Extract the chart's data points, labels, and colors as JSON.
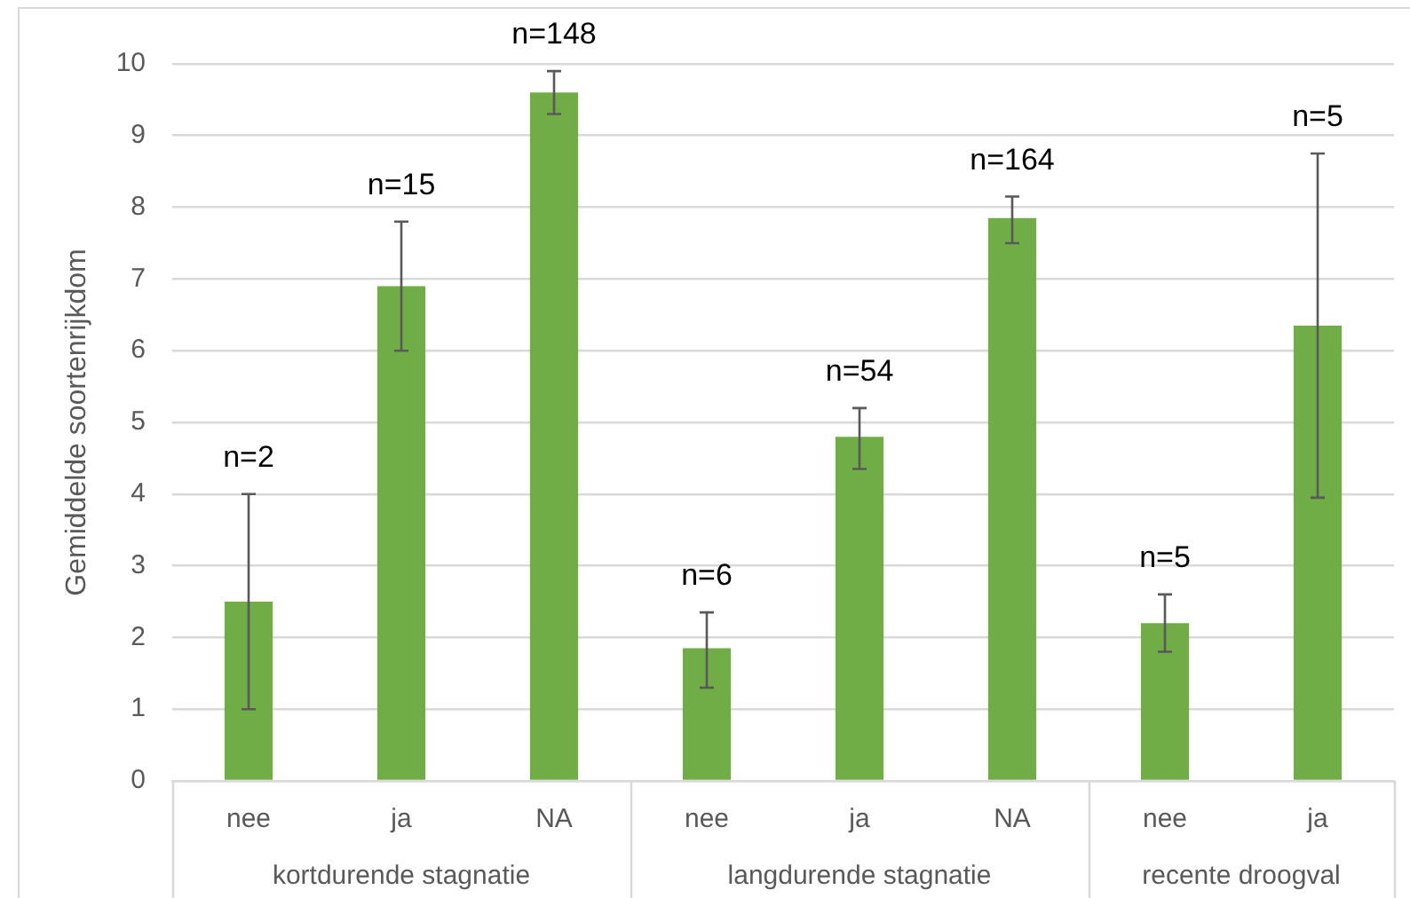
{
  "chart_data": {
    "type": "bar",
    "ylabel": "Gemiddelde soortenrijkdom",
    "categories": [
      "nee",
      "ja",
      "NA",
      "nee",
      "ja",
      "NA",
      "nee",
      "ja"
    ],
    "values": [
      2.5,
      6.9,
      9.6,
      1.85,
      4.8,
      7.85,
      2.2,
      6.35
    ],
    "color": "#70ad47",
    "errors": [
      [
        1,
        4
      ],
      [
        6,
        7.8
      ],
      [
        9.3,
        9.9
      ],
      [
        1.3,
        2.35
      ],
      [
        4.35,
        5.2
      ],
      [
        7.5,
        8.15
      ],
      [
        1.8,
        2.6
      ],
      [
        3.95,
        8.75
      ]
    ],
    "ylim": [
      0,
      10
    ],
    "yticks": [
      0,
      1,
      2,
      3,
      4,
      5,
      6,
      7,
      8,
      9,
      10
    ],
    "grid": "y",
    "annotations": [
      "n=2",
      "n=15",
      "n=148",
      "n=6",
      "n=54",
      "n=164",
      "n=5",
      "n=5",
      "kortdurende stagnatie",
      "langdurende stagnatie",
      "recente droogval"
    ]
  }
}
